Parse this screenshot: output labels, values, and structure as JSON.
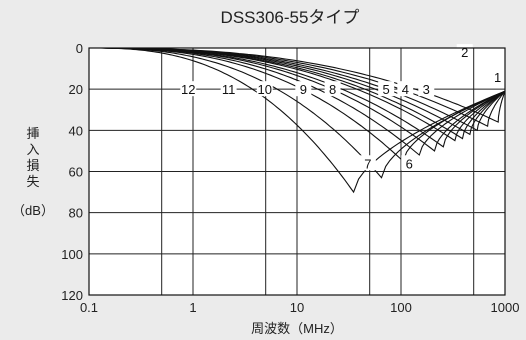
{
  "chart_data": {
    "type": "line",
    "title": "DSS306-55タイプ",
    "xlabel": "周波数（MHz）",
    "ylabel_chars": [
      "挿",
      "入",
      "損",
      "失"
    ],
    "ylabel_unit": "（dB）",
    "x_scale": "log",
    "xlim": [
      0.1,
      1000
    ],
    "ylim": [
      0,
      120
    ],
    "y_inverted": true,
    "grid": true,
    "x_ticks": [
      0.1,
      1,
      10,
      100,
      1000
    ],
    "x_tick_labels": [
      "0.1",
      "1",
      "10",
      "100",
      "1000"
    ],
    "x_minor_grid": [
      0.5,
      5,
      50,
      500
    ],
    "y_ticks": [
      0,
      20,
      40,
      60,
      80,
      100,
      120
    ],
    "y_tick_labels": [
      "0",
      "20",
      "40",
      "60",
      "80",
      "100",
      "120"
    ],
    "convergence": {
      "x": 1000,
      "y": 21
    },
    "series": [
      {
        "name": "12",
        "fc": 35,
        "peak": 70,
        "label_x": 0.9,
        "label_y": 20
      },
      {
        "name": "11",
        "fc": 65,
        "peak": 63,
        "label_x": 2.2,
        "label_y": 20
      },
      {
        "name": "10",
        "fc": 105,
        "peak": 55,
        "label_x": 4.9,
        "label_y": 20
      },
      {
        "name": "9",
        "fc": 150,
        "peak": 52,
        "label_x": 11.5,
        "label_y": 20
      },
      {
        "name": "8",
        "fc": 210,
        "peak": 50,
        "label_x": 22,
        "label_y": 20
      },
      {
        "name": "7",
        "fc": 255,
        "peak": 48,
        "label_x": 48,
        "label_y": 56
      },
      {
        "name": "6",
        "fc": 330,
        "peak": 45,
        "label_x": 120,
        "label_y": 56
      },
      {
        "name": "5",
        "fc": 390,
        "peak": 44,
        "label_x": 72,
        "label_y": 20
      },
      {
        "name": "4",
        "fc": 460,
        "peak": 42,
        "label_x": 110,
        "label_y": 20
      },
      {
        "name": "3",
        "fc": 540,
        "peak": 40,
        "label_x": 175,
        "label_y": 20
      },
      {
        "name": "2",
        "fc": 680,
        "peak": 38,
        "label_x": 410,
        "label_y": 2
      },
      {
        "name": "1",
        "fc": 860,
        "peak": 36,
        "label_x": 850,
        "label_y": 14
      }
    ]
  }
}
